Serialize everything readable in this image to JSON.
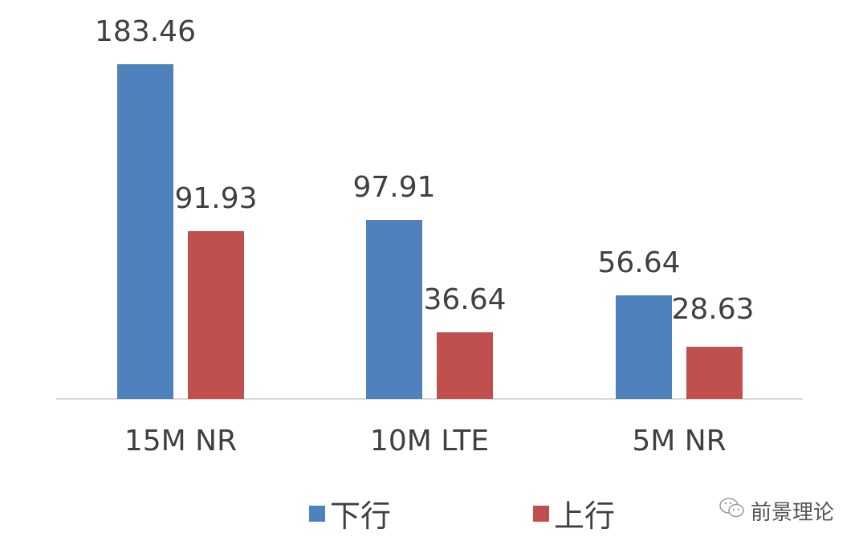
{
  "chart_data": {
    "type": "bar",
    "title": "",
    "xlabel": "",
    "ylabel": "",
    "categories": [
      "15M NR",
      "10M LTE",
      "5M NR"
    ],
    "series": [
      {
        "name": "下行",
        "color": "#4f81bd",
        "values": [
          183.46,
          97.91,
          56.64
        ]
      },
      {
        "name": "上行",
        "color": "#c0504d",
        "values": [
          91.93,
          36.64,
          28.63
        ]
      }
    ],
    "ylim": [
      0,
      183.46
    ],
    "grid": false,
    "data_labels": true,
    "legend_position": "bottom"
  },
  "labels": {
    "s0": [
      "183.46",
      "97.91",
      "56.64"
    ],
    "s1": [
      "91.93",
      "36.64",
      "28.63"
    ]
  },
  "legend": [
    {
      "label": "下行",
      "color": "#4f81bd"
    },
    {
      "label": "上行",
      "color": "#c0504d"
    }
  ],
  "watermark": {
    "text": "前景理论",
    "icon": "wechat-icon"
  }
}
